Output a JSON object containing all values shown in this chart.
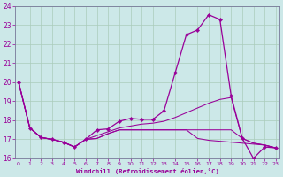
{
  "background_color": "#cce8e8",
  "grid_color": "#aaccbb",
  "line_color": "#990099",
  "ylim": [
    16,
    24
  ],
  "xlim": [
    -0.3,
    23.3
  ],
  "yticks": [
    16,
    17,
    18,
    19,
    20,
    21,
    22,
    23,
    24
  ],
  "xticks": [
    0,
    1,
    2,
    3,
    4,
    5,
    6,
    7,
    8,
    9,
    10,
    11,
    12,
    13,
    14,
    15,
    16,
    17,
    18,
    19,
    20,
    21,
    22,
    23
  ],
  "xlabel": "Windchill (Refroidissement éolien,°C)",
  "series_main": [
    20.0,
    17.6,
    17.1,
    17.0,
    16.85,
    16.6,
    17.0,
    17.5,
    17.55,
    17.95,
    18.1,
    18.05,
    18.05,
    18.5,
    20.5,
    22.5,
    22.75,
    23.55,
    23.3,
    19.3,
    17.05,
    16.0,
    16.6,
    16.55
  ],
  "series2": [
    20.0,
    17.6,
    17.1,
    17.0,
    16.85,
    16.6,
    17.0,
    17.05,
    17.3,
    17.5,
    17.5,
    17.5,
    17.5,
    17.5,
    17.5,
    17.5,
    17.5,
    17.5,
    17.5,
    17.5,
    17.05,
    16.8,
    16.7,
    16.55
  ],
  "series3": [
    20.0,
    17.6,
    17.1,
    17.0,
    16.85,
    16.6,
    17.0,
    17.2,
    17.4,
    17.6,
    17.7,
    17.8,
    17.85,
    17.95,
    18.15,
    18.4,
    18.65,
    18.9,
    19.1,
    19.2,
    17.05,
    16.8,
    16.7,
    16.55
  ],
  "series4": [
    20.0,
    17.6,
    17.1,
    17.0,
    16.85,
    16.6,
    17.0,
    17.05,
    17.3,
    17.5,
    17.5,
    17.5,
    17.5,
    17.5,
    17.5,
    17.5,
    17.05,
    16.95,
    16.9,
    16.85,
    16.8,
    16.75,
    16.7,
    16.55
  ]
}
